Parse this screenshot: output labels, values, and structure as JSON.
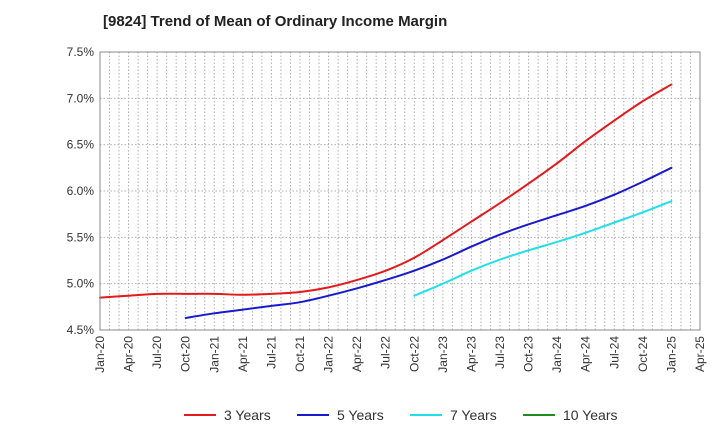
{
  "chart_data": {
    "type": "line",
    "title": "[9824]  Trend of Mean of Ordinary Income Margin",
    "xlabel": "",
    "ylabel": "",
    "x_ticks": [
      "Jan-20",
      "Apr-20",
      "Jul-20",
      "Oct-20",
      "Jan-21",
      "Apr-21",
      "Jul-21",
      "Oct-21",
      "Jan-22",
      "Apr-22",
      "Jul-22",
      "Oct-22",
      "Jan-23",
      "Apr-23",
      "Jul-23",
      "Oct-23",
      "Jan-24",
      "Apr-24",
      "Jul-24",
      "Oct-24",
      "Jan-25",
      "Apr-25"
    ],
    "y_ticks": [
      "4.5%",
      "5.0%",
      "5.5%",
      "6.0%",
      "6.5%",
      "7.0%",
      "7.5%"
    ],
    "ylim": [
      4.5,
      7.5
    ],
    "xlim": [
      "2020-01",
      "2025-04"
    ],
    "grid": true,
    "legend_position": "bottom",
    "series": [
      {
        "name": "3 Years",
        "color": "#e31a1c",
        "points": [
          [
            "2020-01",
            4.85
          ],
          [
            "2020-04",
            4.87
          ],
          [
            "2020-07",
            4.89
          ],
          [
            "2020-10",
            4.89
          ],
          [
            "2021-01",
            4.89
          ],
          [
            "2021-04",
            4.88
          ],
          [
            "2021-07",
            4.89
          ],
          [
            "2021-10",
            4.91
          ],
          [
            "2022-01",
            4.96
          ],
          [
            "2022-04",
            5.04
          ],
          [
            "2022-07",
            5.14
          ],
          [
            "2022-10",
            5.28
          ],
          [
            "2023-01",
            5.47
          ],
          [
            "2023-04",
            5.67
          ],
          [
            "2023-07",
            5.87
          ],
          [
            "2023-10",
            6.08
          ],
          [
            "2024-01",
            6.3
          ],
          [
            "2024-04",
            6.54
          ],
          [
            "2024-07",
            6.76
          ],
          [
            "2024-10",
            6.97
          ],
          [
            "2025-01",
            7.15
          ]
        ]
      },
      {
        "name": "5 Years",
        "color": "#1a1acd",
        "points": [
          [
            "2020-10",
            4.63
          ],
          [
            "2021-01",
            4.68
          ],
          [
            "2021-04",
            4.72
          ],
          [
            "2021-07",
            4.76
          ],
          [
            "2021-10",
            4.8
          ],
          [
            "2022-01",
            4.87
          ],
          [
            "2022-04",
            4.95
          ],
          [
            "2022-07",
            5.04
          ],
          [
            "2022-10",
            5.14
          ],
          [
            "2023-01",
            5.26
          ],
          [
            "2023-04",
            5.4
          ],
          [
            "2023-07",
            5.53
          ],
          [
            "2023-10",
            5.64
          ],
          [
            "2024-01",
            5.74
          ],
          [
            "2024-04",
            5.84
          ],
          [
            "2024-07",
            5.96
          ],
          [
            "2024-10",
            6.1
          ],
          [
            "2025-01",
            6.25
          ]
        ]
      },
      {
        "name": "7 Years",
        "color": "#22e0e8",
        "points": [
          [
            "2022-10",
            4.87
          ],
          [
            "2023-01",
            5.0
          ],
          [
            "2023-04",
            5.14
          ],
          [
            "2023-07",
            5.26
          ],
          [
            "2023-10",
            5.36
          ],
          [
            "2024-01",
            5.45
          ],
          [
            "2024-04",
            5.55
          ],
          [
            "2024-07",
            5.66
          ],
          [
            "2024-10",
            5.77
          ],
          [
            "2025-01",
            5.89
          ]
        ]
      },
      {
        "name": "10 Years",
        "color": "#1f8a1f",
        "points": []
      }
    ]
  }
}
